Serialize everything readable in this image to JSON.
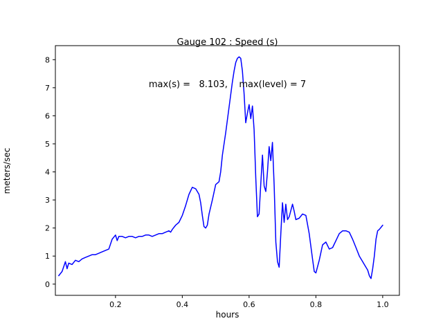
{
  "figure": {
    "title": "Gauge 102 : Speed (s)",
    "subtitle": "max(s) =   8.103,    max(level) = 7",
    "xlabel": "hours",
    "ylabel": "meters/sec"
  },
  "chart_data": {
    "type": "line",
    "title": "Gauge 102 : Speed (s)",
    "subtitle": "max(s) =   8.103,    max(level) = 7",
    "xlabel": "hours",
    "ylabel": "meters/sec",
    "xlim": [
      0.02,
      1.05
    ],
    "ylim": [
      -0.4,
      8.5
    ],
    "xticks": [
      0.2,
      0.4,
      0.6,
      0.8,
      1.0
    ],
    "yticks": [
      0,
      1,
      2,
      3,
      4,
      5,
      6,
      7,
      8
    ],
    "grid": false,
    "legend_position": "none",
    "line_color": "#0000ff",
    "max_s": 8.103,
    "max_level": 7,
    "series": [
      {
        "name": "speed",
        "x": [
          0.03,
          0.04,
          0.05,
          0.055,
          0.06,
          0.07,
          0.08,
          0.09,
          0.1,
          0.11,
          0.12,
          0.13,
          0.14,
          0.15,
          0.16,
          0.17,
          0.18,
          0.19,
          0.2,
          0.205,
          0.21,
          0.22,
          0.23,
          0.24,
          0.25,
          0.26,
          0.27,
          0.28,
          0.29,
          0.3,
          0.31,
          0.32,
          0.33,
          0.34,
          0.35,
          0.36,
          0.365,
          0.37,
          0.38,
          0.39,
          0.4,
          0.41,
          0.42,
          0.43,
          0.44,
          0.45,
          0.455,
          0.46,
          0.465,
          0.47,
          0.475,
          0.48,
          0.49,
          0.5,
          0.505,
          0.51,
          0.515,
          0.52,
          0.53,
          0.54,
          0.55,
          0.555,
          0.56,
          0.565,
          0.57,
          0.575,
          0.58,
          0.585,
          0.59,
          0.595,
          0.6,
          0.605,
          0.61,
          0.615,
          0.62,
          0.625,
          0.63,
          0.635,
          0.64,
          0.645,
          0.65,
          0.655,
          0.66,
          0.665,
          0.67,
          0.675,
          0.68,
          0.685,
          0.69,
          0.695,
          0.7,
          0.705,
          0.71,
          0.715,
          0.72,
          0.73,
          0.735,
          0.74,
          0.75,
          0.76,
          0.77,
          0.78,
          0.79,
          0.795,
          0.8,
          0.81,
          0.82,
          0.83,
          0.84,
          0.85,
          0.86,
          0.87,
          0.88,
          0.89,
          0.9,
          0.91,
          0.92,
          0.93,
          0.94,
          0.95,
          0.955,
          0.96,
          0.965,
          0.97,
          0.975,
          0.98,
          0.985,
          0.99,
          1.0
        ],
        "y": [
          0.3,
          0.45,
          0.8,
          0.55,
          0.75,
          0.7,
          0.85,
          0.8,
          0.9,
          0.95,
          1.0,
          1.05,
          1.05,
          1.1,
          1.15,
          1.2,
          1.25,
          1.6,
          1.75,
          1.55,
          1.7,
          1.7,
          1.65,
          1.7,
          1.7,
          1.65,
          1.7,
          1.7,
          1.75,
          1.75,
          1.7,
          1.75,
          1.8,
          1.8,
          1.85,
          1.9,
          1.85,
          1.95,
          2.1,
          2.2,
          2.45,
          2.8,
          3.2,
          3.45,
          3.4,
          3.2,
          2.9,
          2.45,
          2.05,
          2.0,
          2.1,
          2.5,
          3.0,
          3.55,
          3.6,
          3.65,
          4.0,
          4.6,
          5.4,
          6.3,
          7.2,
          7.6,
          7.9,
          8.05,
          8.1,
          8.05,
          7.6,
          6.8,
          5.75,
          6.1,
          6.4,
          5.9,
          6.35,
          5.5,
          3.8,
          2.4,
          2.5,
          3.6,
          4.6,
          3.5,
          3.3,
          4.0,
          4.9,
          4.4,
          5.05,
          3.5,
          1.5,
          0.8,
          0.6,
          1.8,
          2.9,
          2.2,
          2.85,
          2.3,
          2.4,
          2.85,
          2.6,
          2.3,
          2.35,
          2.5,
          2.45,
          1.8,
          0.9,
          0.45,
          0.4,
          0.85,
          1.4,
          1.5,
          1.25,
          1.3,
          1.55,
          1.8,
          1.9,
          1.9,
          1.85,
          1.6,
          1.3,
          1.0,
          0.8,
          0.6,
          0.5,
          0.3,
          0.2,
          0.55,
          1.0,
          1.6,
          1.9,
          1.95,
          2.1
        ]
      }
    ]
  }
}
